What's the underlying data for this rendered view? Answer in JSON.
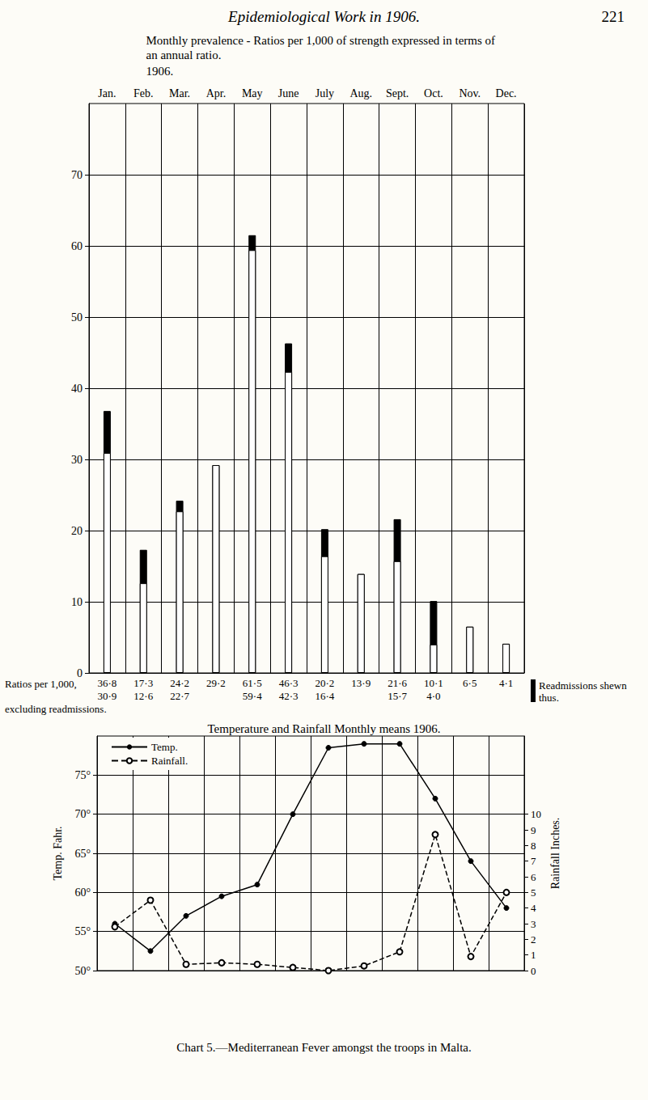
{
  "page": {
    "header": "Epidemiological Work in 1906.",
    "page_number": "221",
    "caption": "Chart 5.—Mediterranean Fever amongst the troops in Malta."
  },
  "chart_data": [
    {
      "type": "bar",
      "title": "Monthly prevalence - Ratios per 1,000 of strength expressed in terms of an annual ratio.",
      "subtitle": "1906.",
      "categories": [
        "Jan.",
        "Feb.",
        "Mar.",
        "Apr.",
        "May",
        "June",
        "July",
        "Aug.",
        "Sept.",
        "Oct.",
        "Nov.",
        "Dec."
      ],
      "series": [
        {
          "name": "Ratios per 1,000,",
          "color": "#000000",
          "values": [
            36.8,
            17.3,
            24.2,
            29.2,
            61.5,
            46.3,
            20.2,
            13.9,
            21.6,
            10.1,
            6.5,
            4.1
          ],
          "value_labels": [
            "36·8",
            "17·3",
            "24·2",
            "29·2",
            "61·5",
            "46·3",
            "20·2",
            "13·9",
            "21·6",
            "10·1",
            "6·5",
            "4·1"
          ]
        },
        {
          "name": "excluding readmissions.",
          "color": "#ffffff",
          "values": [
            30.9,
            12.6,
            22.7,
            29.2,
            59.4,
            42.3,
            16.4,
            13.9,
            15.7,
            4.0,
            6.5,
            4.1
          ],
          "value_labels": [
            "30·9",
            "12·6",
            "22·7",
            null,
            "59·4",
            "42·3",
            "16·4",
            null,
            "15·7",
            "4·0",
            null,
            null
          ]
        }
      ],
      "annotations": [
        {
          "text": "Readmissions shewn thus.",
          "color": "#000000"
        }
      ],
      "ylim": [
        0,
        80
      ],
      "yticks": [
        0,
        10,
        20,
        30,
        40,
        50,
        60,
        70
      ],
      "grid": true,
      "data_labels": true
    },
    {
      "type": "line",
      "title": "Temperature and Rainfall Monthly means 1906.",
      "categories": [
        null,
        null,
        null,
        null,
        null,
        null,
        null,
        null,
        null,
        null,
        null,
        null
      ],
      "series": [
        {
          "name": "Temp.",
          "color": "#000000",
          "marker": "dot",
          "line_style": "solid",
          "values": [
            56,
            52.5,
            57,
            59.5,
            61,
            70,
            78.5,
            79,
            79,
            72,
            64,
            58
          ]
        },
        {
          "name": "Rainfall.",
          "color": "#000000",
          "marker": "circle",
          "line_style": "dashed",
          "axis": "y2",
          "values": [
            2.8,
            4.5,
            0.4,
            0.5,
            0.4,
            0.2,
            0.0,
            0.3,
            1.2,
            8.7,
            0.9,
            5.0
          ]
        }
      ],
      "ylabel": "Temp. Fahr.",
      "y2label": "Rainfall Inches.",
      "ylim": [
        50,
        80
      ],
      "yticks": [
        {
          "value": 50,
          "label": "50°"
        },
        {
          "value": 55,
          "label": "55°"
        },
        {
          "value": 60,
          "label": "60°"
        },
        {
          "value": 65,
          "label": "65°"
        },
        {
          "value": 70,
          "label": "70°"
        },
        {
          "value": 75,
          "label": "75°"
        }
      ],
      "y2lim": [
        0,
        15
      ],
      "y2ticks": [
        0,
        1,
        2,
        3,
        4,
        5,
        6,
        7,
        8,
        9,
        10
      ],
      "grid": true,
      "legend": "top-left"
    }
  ]
}
